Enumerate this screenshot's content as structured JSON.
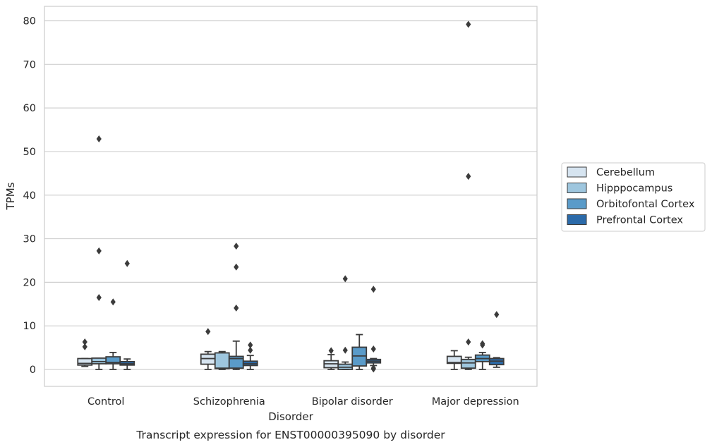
{
  "chart_data": {
    "type": "box",
    "title": "Transcript expression for ENST00000395090 by disorder",
    "xlabel": "Disorder",
    "ylabel": "TPMs",
    "ylim": [
      -4,
      83
    ],
    "yticks": [
      0,
      10,
      20,
      30,
      40,
      50,
      60,
      70,
      80
    ],
    "grid": true,
    "legend_position": "right",
    "categories": [
      "Control",
      "Schizophrenia",
      "Bipolar disorder",
      "Major depression"
    ],
    "series": [
      {
        "name": "Cerebellum",
        "color": "#d6e4f0",
        "boxes": [
          {
            "whisker_low": 0.7,
            "q1": 1.0,
            "median": 1.4,
            "q3": 2.5,
            "whisker_high": 2.5,
            "outliers": [
              5.2,
              6.3
            ]
          },
          {
            "whisker_low": 0.0,
            "q1": 1.2,
            "median": 2.5,
            "q3": 3.5,
            "whisker_high": 4.1,
            "outliers": [
              8.7
            ]
          },
          {
            "whisker_low": 0.0,
            "q1": 0.4,
            "median": 1.3,
            "q3": 2.0,
            "whisker_high": 3.4,
            "outliers": [
              4.3
            ]
          },
          {
            "whisker_low": 0.0,
            "q1": 1.4,
            "median": 1.6,
            "q3": 3.0,
            "whisker_high": 4.3,
            "outliers": []
          }
        ]
      },
      {
        "name": "Hipppocampus",
        "color": "#9ec6de",
        "boxes": [
          {
            "whisker_low": 0.0,
            "q1": 1.3,
            "median": 1.8,
            "q3": 2.6,
            "whisker_high": 2.6,
            "outliers": [
              16.5,
              27.2,
              52.9
            ]
          },
          {
            "whisker_low": 0.0,
            "q1": 0.2,
            "median": 0.3,
            "q3": 3.8,
            "whisker_high": 4.1,
            "outliers": []
          },
          {
            "whisker_low": 0.0,
            "q1": 0.0,
            "median": 0.5,
            "q3": 1.2,
            "whisker_high": 1.7,
            "outliers": [
              4.4,
              20.8
            ]
          },
          {
            "whisker_low": 0.0,
            "q1": 0.3,
            "median": 1.5,
            "q3": 2.3,
            "whisker_high": 2.8,
            "outliers": [
              6.3,
              44.3,
              79.2
            ]
          }
        ]
      },
      {
        "name": "Orbitofontal Cortex",
        "color": "#5a9bc9",
        "boxes": [
          {
            "whisker_low": 0.0,
            "q1": 1.3,
            "median": 1.6,
            "q3": 2.9,
            "whisker_high": 3.9,
            "outliers": [
              15.5
            ]
          },
          {
            "whisker_low": 0.0,
            "q1": 0.3,
            "median": 2.5,
            "q3": 3.0,
            "whisker_high": 6.5,
            "outliers": [
              14.1,
              23.5,
              28.3
            ]
          },
          {
            "whisker_low": 0.0,
            "q1": 0.8,
            "median": 3.1,
            "q3": 5.1,
            "whisker_high": 8.0,
            "outliers": []
          },
          {
            "whisker_low": 0.0,
            "q1": 1.8,
            "median": 2.5,
            "q3": 3.3,
            "whisker_high": 3.9,
            "outliers": [
              5.6,
              5.9
            ]
          }
        ]
      },
      {
        "name": "Prefrontal Cortex",
        "color": "#2b6aa9",
        "boxes": [
          {
            "whisker_low": 0.0,
            "q1": 1.0,
            "median": 1.3,
            "q3": 1.8,
            "whisker_high": 2.4,
            "outliers": [
              24.3
            ]
          },
          {
            "whisker_low": 0.0,
            "q1": 0.9,
            "median": 1.3,
            "q3": 1.9,
            "whisker_high": 3.2,
            "outliers": [
              4.4,
              5.6
            ]
          },
          {
            "whisker_low": 0.9,
            "q1": 1.5,
            "median": 1.9,
            "q3": 2.3,
            "whisker_high": 2.5,
            "outliers": [
              0.1,
              0.3,
              4.7,
              18.4
            ]
          },
          {
            "whisker_low": 0.5,
            "q1": 1.1,
            "median": 1.9,
            "q3": 2.5,
            "whisker_high": 2.7,
            "outliers": [
              12.6
            ]
          }
        ]
      }
    ]
  }
}
